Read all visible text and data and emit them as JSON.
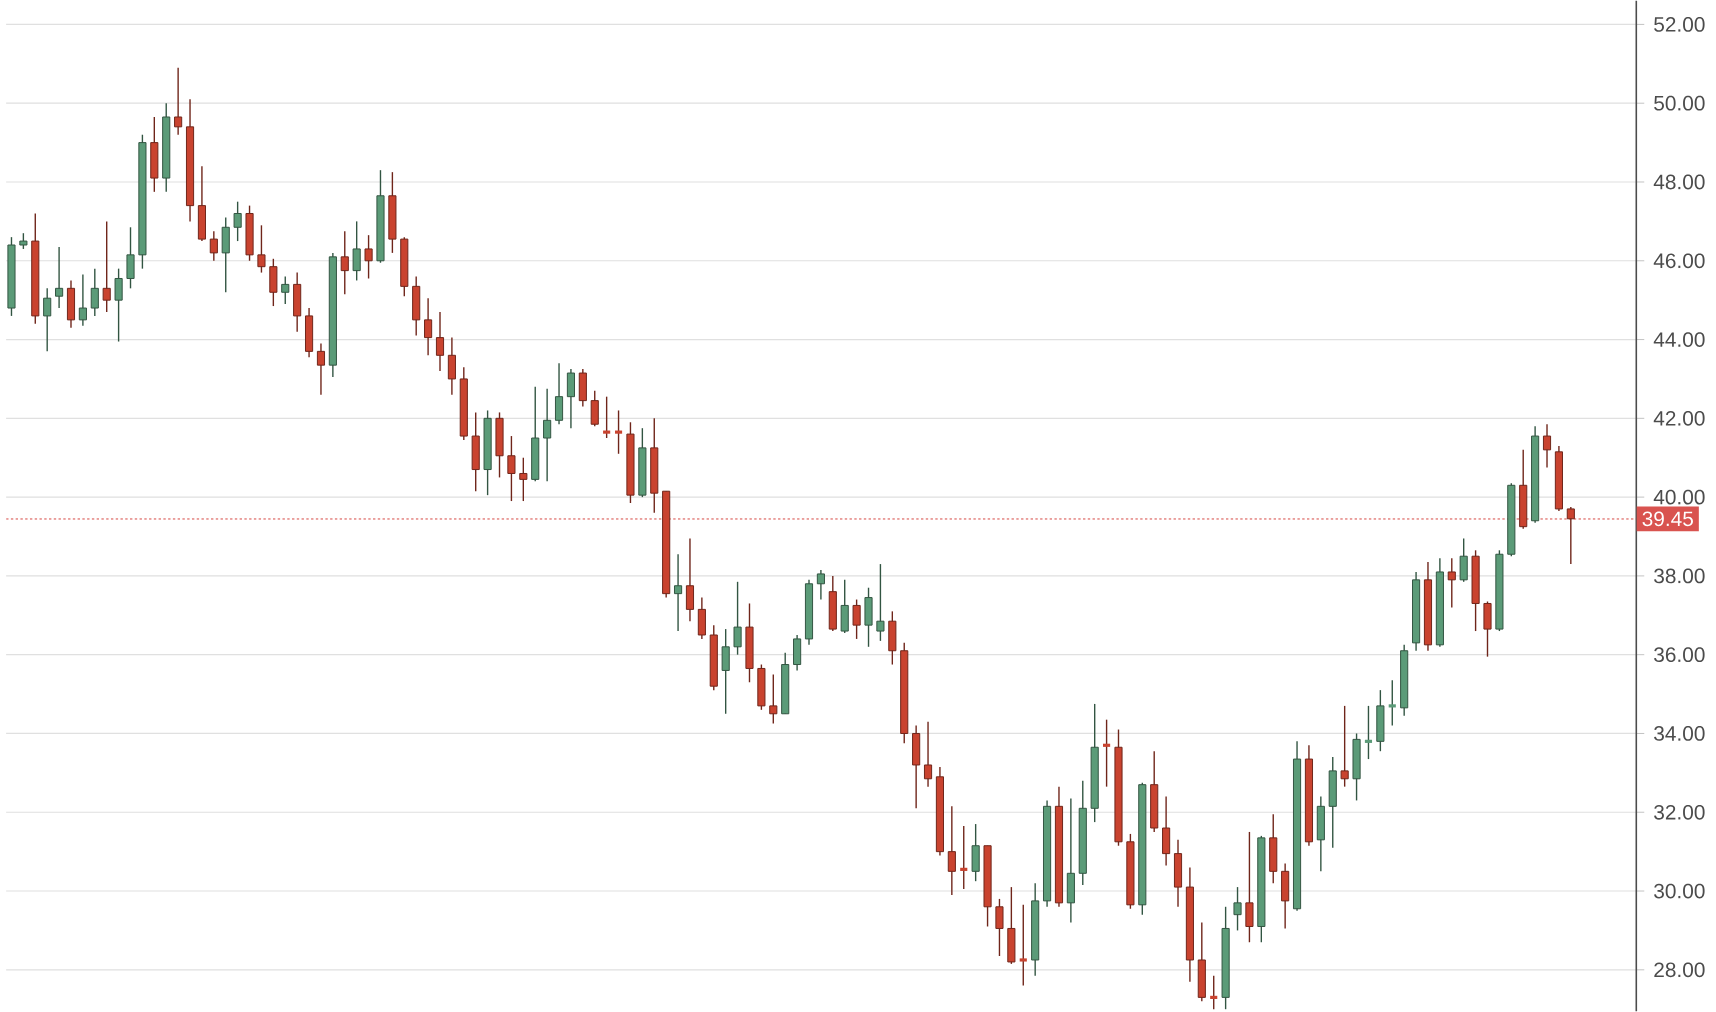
{
  "chart_data": {
    "type": "candlestick",
    "categories": [
      null,
      null,
      null,
      null,
      null,
      null,
      null,
      null,
      null,
      null,
      null,
      null,
      null,
      null,
      null,
      null,
      null,
      null,
      null,
      null,
      null,
      null,
      null,
      null,
      null,
      null,
      null,
      null,
      null,
      null,
      null,
      null,
      null,
      null,
      null,
      null,
      null,
      null,
      null,
      null,
      null,
      null,
      null,
      null,
      null,
      null,
      null,
      null,
      null,
      null,
      null,
      null,
      null,
      null,
      null,
      null,
      null,
      null,
      null,
      null,
      null,
      null,
      null,
      null,
      null,
      null,
      null,
      null,
      null,
      null,
      null,
      null,
      null,
      null,
      null,
      null,
      null,
      null,
      null,
      null,
      null,
      null,
      null,
      null,
      null,
      null,
      null,
      null,
      null,
      null,
      null,
      null,
      null,
      null,
      null,
      null,
      null,
      null,
      null,
      null,
      null,
      null,
      null,
      null,
      null,
      null,
      null,
      null,
      null,
      null,
      null,
      null,
      null,
      null,
      null,
      null,
      null,
      null,
      null,
      null,
      null,
      null,
      null,
      null,
      null,
      null,
      null,
      null,
      null,
      null,
      null,
      null
    ],
    "ohlc": [
      [
        44.8,
        46.6,
        44.6,
        46.4
      ],
      [
        46.4,
        46.7,
        46.3,
        46.5
      ],
      [
        46.5,
        47.2,
        44.4,
        44.6
      ],
      [
        44.6,
        45.3,
        43.7,
        45.05
      ],
      [
        45.1,
        46.35,
        44.8,
        45.3
      ],
      [
        45.3,
        45.5,
        44.3,
        44.5
      ],
      [
        44.5,
        45.65,
        44.35,
        44.8
      ],
      [
        44.8,
        45.8,
        44.6,
        45.3
      ],
      [
        45.3,
        47.0,
        44.7,
        45.0
      ],
      [
        45.0,
        45.8,
        43.95,
        45.55
      ],
      [
        45.55,
        46.85,
        45.3,
        46.15
      ],
      [
        46.15,
        49.2,
        45.8,
        49.0
      ],
      [
        49.0,
        49.65,
        47.75,
        48.1
      ],
      [
        48.1,
        50.0,
        47.75,
        49.65
      ],
      [
        49.65,
        50.9,
        49.2,
        49.4
      ],
      [
        49.4,
        50.1,
        47.0,
        47.4
      ],
      [
        47.4,
        48.4,
        46.5,
        46.55
      ],
      [
        46.55,
        46.75,
        46.0,
        46.2
      ],
      [
        46.2,
        47.1,
        45.2,
        46.85
      ],
      [
        46.85,
        47.5,
        46.5,
        47.2
      ],
      [
        47.2,
        47.4,
        46.0,
        46.15
      ],
      [
        46.15,
        46.9,
        45.7,
        45.85
      ],
      [
        45.85,
        46.05,
        44.85,
        45.2
      ],
      [
        45.2,
        45.6,
        44.9,
        45.4
      ],
      [
        45.4,
        45.7,
        44.2,
        44.6
      ],
      [
        44.6,
        44.8,
        43.55,
        43.7
      ],
      [
        43.7,
        43.9,
        42.6,
        43.35
      ],
      [
        43.35,
        46.2,
        43.05,
        46.1
      ],
      [
        46.1,
        46.75,
        45.15,
        45.75
      ],
      [
        45.75,
        47.0,
        45.5,
        46.3
      ],
      [
        46.3,
        46.65,
        45.55,
        46.0
      ],
      [
        46.0,
        48.3,
        45.95,
        47.65
      ],
      [
        47.65,
        48.25,
        46.2,
        46.55
      ],
      [
        46.55,
        46.6,
        45.1,
        45.35
      ],
      [
        45.35,
        45.6,
        44.1,
        44.5
      ],
      [
        44.5,
        45.05,
        43.6,
        44.05
      ],
      [
        44.05,
        44.7,
        43.2,
        43.6
      ],
      [
        43.6,
        44.05,
        42.6,
        43.0
      ],
      [
        43.0,
        43.3,
        41.45,
        41.55
      ],
      [
        41.55,
        42.15,
        40.15,
        40.7
      ],
      [
        40.7,
        42.2,
        40.05,
        42.0
      ],
      [
        42.0,
        42.15,
        40.5,
        41.05
      ],
      [
        41.05,
        41.55,
        39.9,
        40.6
      ],
      [
        40.6,
        41.0,
        39.9,
        40.45
      ],
      [
        40.45,
        42.8,
        40.4,
        41.5
      ],
      [
        41.5,
        42.75,
        40.4,
        41.95
      ],
      [
        41.95,
        43.4,
        41.85,
        42.55
      ],
      [
        42.55,
        43.25,
        41.75,
        43.15
      ],
      [
        43.15,
        43.25,
        42.3,
        42.45
      ],
      [
        42.45,
        42.7,
        41.8,
        41.85
      ],
      [
        41.65,
        42.55,
        41.5,
        41.6
      ],
      [
        41.65,
        42.2,
        41.1,
        41.6
      ],
      [
        41.6,
        41.9,
        39.85,
        40.05
      ],
      [
        40.05,
        41.75,
        40.0,
        41.25
      ],
      [
        41.25,
        42.0,
        39.6,
        40.1
      ],
      [
        40.15,
        40.15,
        37.45,
        37.55
      ],
      [
        37.55,
        38.55,
        36.6,
        37.75
      ],
      [
        37.75,
        38.95,
        36.85,
        37.15
      ],
      [
        37.15,
        37.45,
        36.4,
        36.5
      ],
      [
        36.5,
        36.75,
        35.1,
        35.2
      ],
      [
        35.6,
        36.65,
        34.5,
        36.2
      ],
      [
        36.2,
        37.85,
        36.0,
        36.7
      ],
      [
        36.7,
        37.3,
        35.3,
        35.65
      ],
      [
        35.65,
        35.75,
        34.6,
        34.7
      ],
      [
        34.7,
        35.5,
        34.25,
        34.5
      ],
      [
        34.5,
        36.05,
        34.5,
        35.75
      ],
      [
        35.75,
        36.5,
        35.6,
        36.4
      ],
      [
        36.4,
        37.9,
        36.25,
        37.8
      ],
      [
        37.8,
        38.15,
        37.4,
        38.05
      ],
      [
        37.6,
        38.0,
        36.6,
        36.65
      ],
      [
        36.6,
        37.9,
        36.55,
        37.25
      ],
      [
        37.25,
        37.4,
        36.4,
        36.75
      ],
      [
        36.75,
        37.7,
        36.2,
        37.45
      ],
      [
        36.6,
        38.3,
        36.35,
        36.85
      ],
      [
        36.85,
        37.1,
        35.75,
        36.1
      ],
      [
        36.1,
        36.3,
        33.75,
        34.0
      ],
      [
        34.0,
        34.2,
        32.1,
        33.2
      ],
      [
        33.2,
        34.3,
        32.65,
        32.85
      ],
      [
        32.9,
        33.15,
        30.9,
        31.0
      ],
      [
        31.0,
        32.15,
        29.9,
        30.5
      ],
      [
        30.55,
        31.65,
        30.05,
        30.5
      ],
      [
        30.5,
        31.7,
        30.25,
        31.15
      ],
      [
        31.15,
        31.15,
        29.1,
        29.6
      ],
      [
        29.6,
        29.8,
        28.35,
        29.05
      ],
      [
        29.05,
        30.1,
        28.15,
        28.2
      ],
      [
        28.25,
        29.65,
        27.6,
        28.2
      ],
      [
        28.25,
        30.2,
        27.85,
        29.75
      ],
      [
        29.75,
        32.3,
        29.6,
        32.15
      ],
      [
        32.15,
        32.65,
        29.6,
        29.7
      ],
      [
        29.7,
        32.35,
        29.2,
        30.45
      ],
      [
        30.45,
        32.8,
        30.15,
        32.1
      ],
      [
        32.1,
        34.75,
        31.75,
        33.65
      ],
      [
        33.7,
        34.35,
        32.65,
        33.65
      ],
      [
        33.65,
        34.1,
        31.15,
        31.25
      ],
      [
        31.25,
        31.45,
        29.55,
        29.65
      ],
      [
        29.65,
        32.75,
        29.4,
        32.7
      ],
      [
        32.7,
        33.55,
        31.5,
        31.6
      ],
      [
        31.6,
        32.4,
        30.65,
        30.95
      ],
      [
        30.95,
        31.3,
        29.6,
        30.1
      ],
      [
        30.1,
        30.6,
        27.7,
        28.25
      ],
      [
        28.25,
        29.2,
        27.2,
        27.3
      ],
      [
        27.3,
        27.85,
        27.0,
        27.25
      ],
      [
        27.3,
        29.6,
        27.0,
        29.05
      ],
      [
        29.4,
        30.1,
        29.0,
        29.7
      ],
      [
        29.7,
        31.5,
        28.7,
        29.1
      ],
      [
        29.1,
        31.4,
        28.7,
        31.35
      ],
      [
        31.35,
        31.95,
        30.2,
        30.5
      ],
      [
        30.5,
        30.7,
        29.05,
        29.75
      ],
      [
        29.55,
        33.8,
        29.5,
        33.35
      ],
      [
        33.35,
        33.7,
        31.15,
        31.25
      ],
      [
        31.3,
        32.4,
        30.5,
        32.15
      ],
      [
        32.15,
        33.4,
        31.1,
        33.05
      ],
      [
        33.05,
        34.7,
        32.65,
        32.85
      ],
      [
        32.85,
        34.0,
        32.3,
        33.85
      ],
      [
        33.8,
        34.7,
        33.35,
        33.85
      ],
      [
        33.8,
        35.1,
        33.55,
        34.7
      ],
      [
        34.7,
        35.35,
        34.2,
        34.75
      ],
      [
        34.65,
        36.25,
        34.45,
        36.1
      ],
      [
        36.3,
        38.1,
        36.1,
        37.9
      ],
      [
        37.9,
        38.35,
        36.1,
        36.25
      ],
      [
        36.25,
        38.45,
        36.2,
        38.1
      ],
      [
        38.1,
        38.45,
        37.2,
        37.9
      ],
      [
        37.9,
        38.95,
        37.85,
        38.5
      ],
      [
        38.5,
        38.65,
        36.6,
        37.3
      ],
      [
        37.3,
        37.35,
        35.95,
        36.65
      ],
      [
        36.65,
        38.65,
        36.6,
        38.55
      ],
      [
        38.55,
        40.35,
        38.5,
        40.3
      ],
      [
        40.3,
        41.2,
        39.2,
        39.25
      ],
      [
        39.4,
        41.8,
        39.35,
        41.55
      ],
      [
        41.55,
        41.85,
        40.75,
        41.2
      ],
      [
        41.15,
        41.3,
        39.65,
        39.7
      ],
      [
        39.7,
        39.75,
        38.3,
        39.45
      ]
    ],
    "colors": [
      "#5b9b78",
      "#5b9b78",
      "#c9432f",
      "#5b9b78",
      "#5b9b78",
      "#c9432f",
      "#5b9b78",
      "#5b9b78",
      "#c9432f",
      "#5b9b78",
      "#5b9b78",
      "#5b9b78",
      "#c9432f",
      "#5b9b78",
      "#c9432f",
      "#c9432f",
      "#c9432f",
      "#c9432f",
      "#5b9b78",
      "#5b9b78",
      "#c9432f",
      "#c9432f",
      "#c9432f",
      "#5b9b78",
      "#c9432f",
      "#c9432f",
      "#c9432f",
      "#5b9b78",
      "#c9432f",
      "#5b9b78",
      "#c9432f",
      "#5b9b78",
      "#c9432f",
      "#c9432f",
      "#c9432f",
      "#c9432f",
      "#c9432f",
      "#c9432f",
      "#c9432f",
      "#c9432f",
      "#5b9b78",
      "#c9432f",
      "#c9432f",
      "#c9432f",
      "#5b9b78",
      "#5b9b78",
      "#5b9b78",
      "#5b9b78",
      "#c9432f",
      "#c9432f",
      "#c9432f",
      "#c9432f",
      "#c9432f",
      "#5b9b78",
      "#c9432f",
      "#c9432f",
      "#5b9b78",
      "#c9432f",
      "#c9432f",
      "#c9432f",
      "#5b9b78",
      "#5b9b78",
      "#c9432f",
      "#c9432f",
      "#c9432f",
      "#5b9b78",
      "#5b9b78",
      "#5b9b78",
      "#5b9b78",
      "#c9432f",
      "#5b9b78",
      "#c9432f",
      "#5b9b78",
      "#5b9b78",
      "#c9432f",
      "#c9432f",
      "#c9432f",
      "#c9432f",
      "#c9432f",
      "#c9432f",
      "#c9432f",
      "#5b9b78",
      "#c9432f",
      "#c9432f",
      "#c9432f",
      "#c9432f",
      "#5b9b78",
      "#5b9b78",
      "#c9432f",
      "#5b9b78",
      "#5b9b78",
      "#5b9b78",
      "#c9432f",
      "#c9432f",
      "#c9432f",
      "#5b9b78",
      "#c9432f",
      "#c9432f",
      "#c9432f",
      "#c9432f",
      "#c9432f",
      "#c9432f",
      "#5b9b78",
      "#5b9b78",
      "#c9432f",
      "#5b9b78",
      "#c9432f",
      "#c9432f",
      "#5b9b78",
      "#c9432f",
      "#5b9b78",
      "#5b9b78",
      "#c9432f",
      "#5b9b78",
      "#5b9b78",
      "#5b9b78",
      "#5b9b78",
      "#5b9b78",
      "#5b9b78",
      "#c9432f",
      "#5b9b78",
      "#c9432f",
      "#5b9b78",
      "#c9432f",
      "#c9432f",
      "#5b9b78",
      "#5b9b78",
      "#c9432f",
      "#5b9b78",
      "#c9432f",
      "#c9432f",
      "#c9432f"
    ],
    "ylim": [
      26.95,
      52.6
    ],
    "yticks": [
      {
        "value": 28,
        "label": "28.00"
      },
      {
        "value": 30,
        "label": "30.00"
      },
      {
        "value": 32,
        "label": "32.00"
      },
      {
        "value": 34,
        "label": "34.00"
      },
      {
        "value": 36,
        "label": "36.00"
      },
      {
        "value": 38,
        "label": "38.00"
      },
      {
        "value": 40,
        "label": "40.00"
      },
      {
        "value": 42,
        "label": "42.00"
      },
      {
        "value": 44,
        "label": "44.00"
      },
      {
        "value": 46,
        "label": "46.00"
      },
      {
        "value": 48,
        "label": "48.00"
      },
      {
        "value": 50,
        "label": "50.00"
      },
      {
        "value": 52,
        "label": "52.00"
      }
    ],
    "ref_lines": [
      {
        "axis": "y",
        "value": 39.45,
        "label": "39.45",
        "color": "#d9534f",
        "line_style": "dotted"
      }
    ],
    "grid": "y"
  }
}
